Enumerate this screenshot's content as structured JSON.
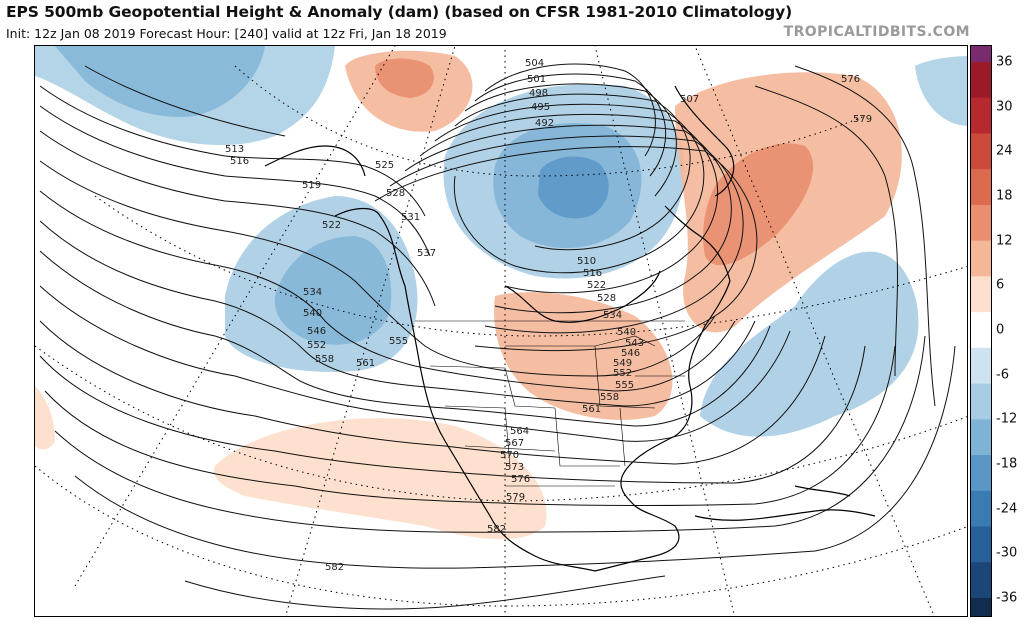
{
  "header": {
    "title": "EPS 500mb Geopotential Height & Anomaly (dam) (based on CFSR 1981-2010 Climatology)",
    "subtitle": "Init: 12z Jan 08 2019   Forecast Hour: [240]   valid at 12z Fri, Jan 18 2019",
    "brand": "TROPICALTIDBITS.COM"
  },
  "colorbar": {
    "ticks": [
      "36",
      "30",
      "24",
      "18",
      "12",
      "6",
      "0",
      "-6",
      "-12",
      "-18",
      "-24",
      "-30",
      "-36"
    ],
    "colors": [
      "#7a2a6e",
      "#9b1a28",
      "#b8282f",
      "#cc4a3c",
      "#dc6a4e",
      "#e98e6f",
      "#f4b798",
      "#fde0cd",
      "#ffffff",
      "#cfe2ef",
      "#a7cce3",
      "#7fb3d6",
      "#5a97c6",
      "#3b7bb3",
      "#275f9a",
      "#1c4677",
      "#112c4f"
    ]
  },
  "map": {
    "height_labels": [
      "504",
      "501",
      "498",
      "495",
      "492",
      "507",
      "576",
      "579",
      "513",
      "516",
      "519",
      "522",
      "525",
      "528",
      "531",
      "537",
      "510",
      "516",
      "522",
      "528",
      "534",
      "540",
      "543",
      "546",
      "549",
      "552",
      "555",
      "558",
      "561",
      "534",
      "540",
      "546",
      "552",
      "558",
      "561",
      "555",
      "564",
      "567",
      "570",
      "573",
      "576",
      "579",
      "582",
      "582"
    ]
  }
}
